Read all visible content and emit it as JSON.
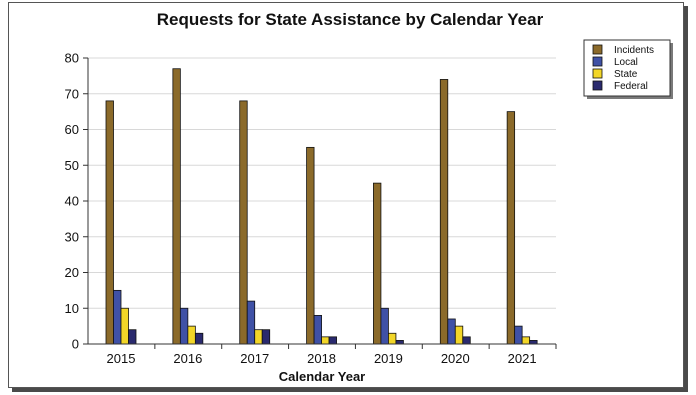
{
  "chart_data": {
    "type": "bar",
    "title": "Requests for State Assistance by Calendar Year",
    "xlabel": "Calendar Year",
    "ylabel": "",
    "ylim": [
      0,
      80
    ],
    "yticks": [
      0,
      10,
      20,
      30,
      40,
      50,
      60,
      70,
      80
    ],
    "categories": [
      "2015",
      "2016",
      "2017",
      "2018",
      "2019",
      "2020",
      "2021"
    ],
    "series": [
      {
        "name": "Incidents",
        "color": "#8B6A2A",
        "values": [
          68,
          77,
          68,
          55,
          45,
          74,
          65
        ]
      },
      {
        "name": "Local",
        "color": "#3F51A6",
        "values": [
          15,
          10,
          12,
          8,
          10,
          7,
          5
        ]
      },
      {
        "name": "State",
        "color": "#F2D628",
        "values": [
          10,
          5,
          4,
          2,
          3,
          5,
          2
        ]
      },
      {
        "name": "Federal",
        "color": "#2A2A6E",
        "values": [
          4,
          3,
          4,
          2,
          1,
          2,
          1
        ]
      }
    ],
    "grid": true,
    "legend_position": "top-right"
  }
}
